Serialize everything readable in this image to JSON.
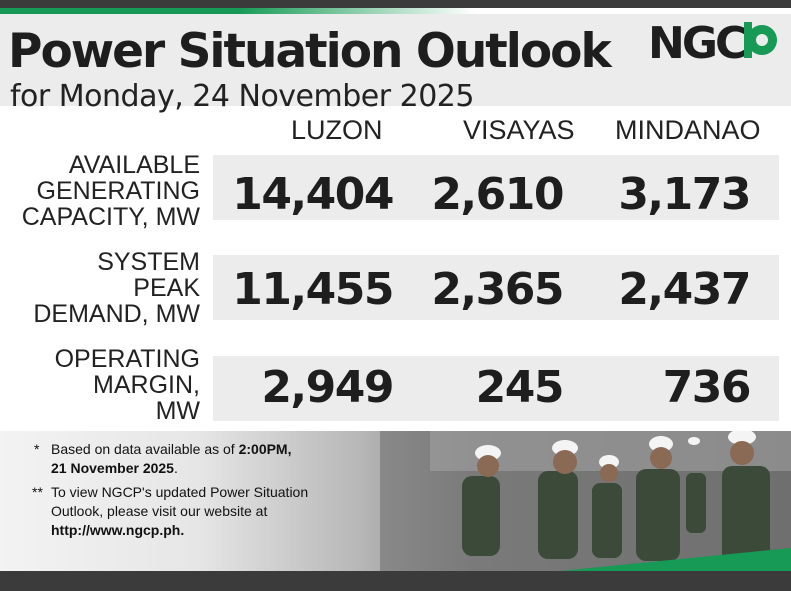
{
  "header": {
    "title": "Power Situation Outlook",
    "subtitle": "for Monday, 24 November 2025",
    "logo_text": "NGCP"
  },
  "columns": [
    "LUZON",
    "VISAYAS",
    "MINDANAO"
  ],
  "rows": [
    {
      "label_lines": [
        "AVAILABLE",
        "GENERATING",
        "CAPACITY, MW"
      ],
      "values": [
        "14,404",
        "2,610",
        "3,173"
      ]
    },
    {
      "label_lines": [
        "SYSTEM",
        "PEAK",
        "DEMAND, MW"
      ],
      "values": [
        "11,455",
        "2,365",
        "2,437"
      ]
    },
    {
      "label_lines": [
        "OPERATING",
        "MARGIN,",
        "MW"
      ],
      "values": [
        "2,949",
        "245",
        "736"
      ]
    }
  ],
  "notes": {
    "note1_marker": "*",
    "note1_prefix": "Based on data available as of ",
    "note1_bold_time": "2:00PM,",
    "note1_bold_date": "21 November 2025",
    "note1_suffix": ".",
    "note2_marker": "**",
    "note2_line1": "To view NGCP's updated Power Situation",
    "note2_line2": "Outlook, please visit our website at",
    "note2_url": "http://www.ngcp.ph."
  },
  "colors": {
    "brand_green": "#169a55",
    "dark_bar": "#3b3b3b",
    "band_gray": "#ececec"
  }
}
